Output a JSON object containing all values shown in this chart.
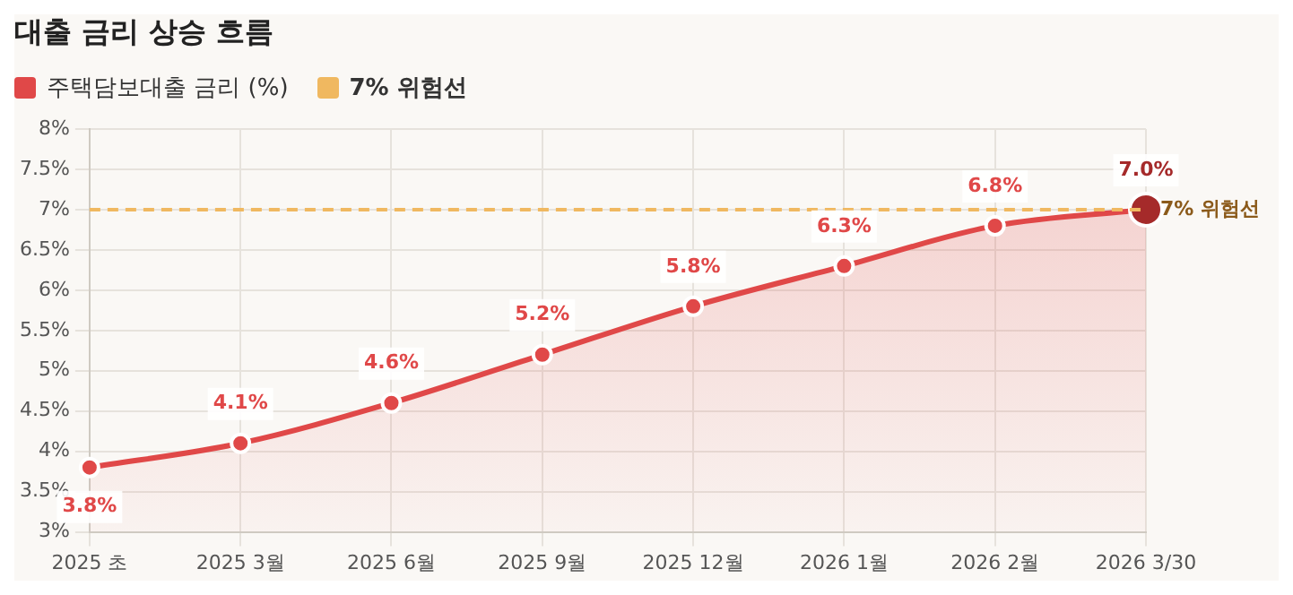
{
  "chart_data": {
    "type": "area",
    "title": "대출 금리 상승 흐름",
    "categories": [
      "2025 초",
      "2025 3월",
      "2025 6월",
      "2025 9월",
      "2025 12월",
      "2026 1월",
      "2026 2월",
      "2026 3/30"
    ],
    "series": [
      {
        "name": "주택담보대출 금리 (%)",
        "color": "#e04848",
        "values": [
          3.8,
          4.1,
          4.6,
          5.2,
          5.8,
          6.3,
          6.8,
          7.0
        ],
        "value_labels": [
          "3.8%",
          "4.1%",
          "4.6%",
          "5.2%",
          "5.8%",
          "6.3%",
          "6.8%",
          "7.0%"
        ]
      }
    ],
    "ylim": [
      3,
      8
    ],
    "yticks": [
      {
        "value": 3,
        "label": "3%"
      },
      {
        "value": 3.5,
        "label": "3.5%"
      },
      {
        "value": 4,
        "label": "4%"
      },
      {
        "value": 4.5,
        "label": "4.5%"
      },
      {
        "value": 5,
        "label": "5%"
      },
      {
        "value": 5.5,
        "label": "5.5%"
      },
      {
        "value": 6,
        "label": "6%"
      },
      {
        "value": 6.5,
        "label": "6.5%"
      },
      {
        "value": 7,
        "label": "7%"
      },
      {
        "value": 7.5,
        "label": "7.5%"
      },
      {
        "value": 8,
        "label": "8%"
      }
    ],
    "ref_lines": [
      {
        "axis": "y",
        "value": 7,
        "label": "7% 위험선",
        "color": "#f0b860",
        "line_style": "dashed"
      }
    ],
    "grid": true,
    "legend": "top left",
    "marker": "circle",
    "line_style": "solid"
  }
}
